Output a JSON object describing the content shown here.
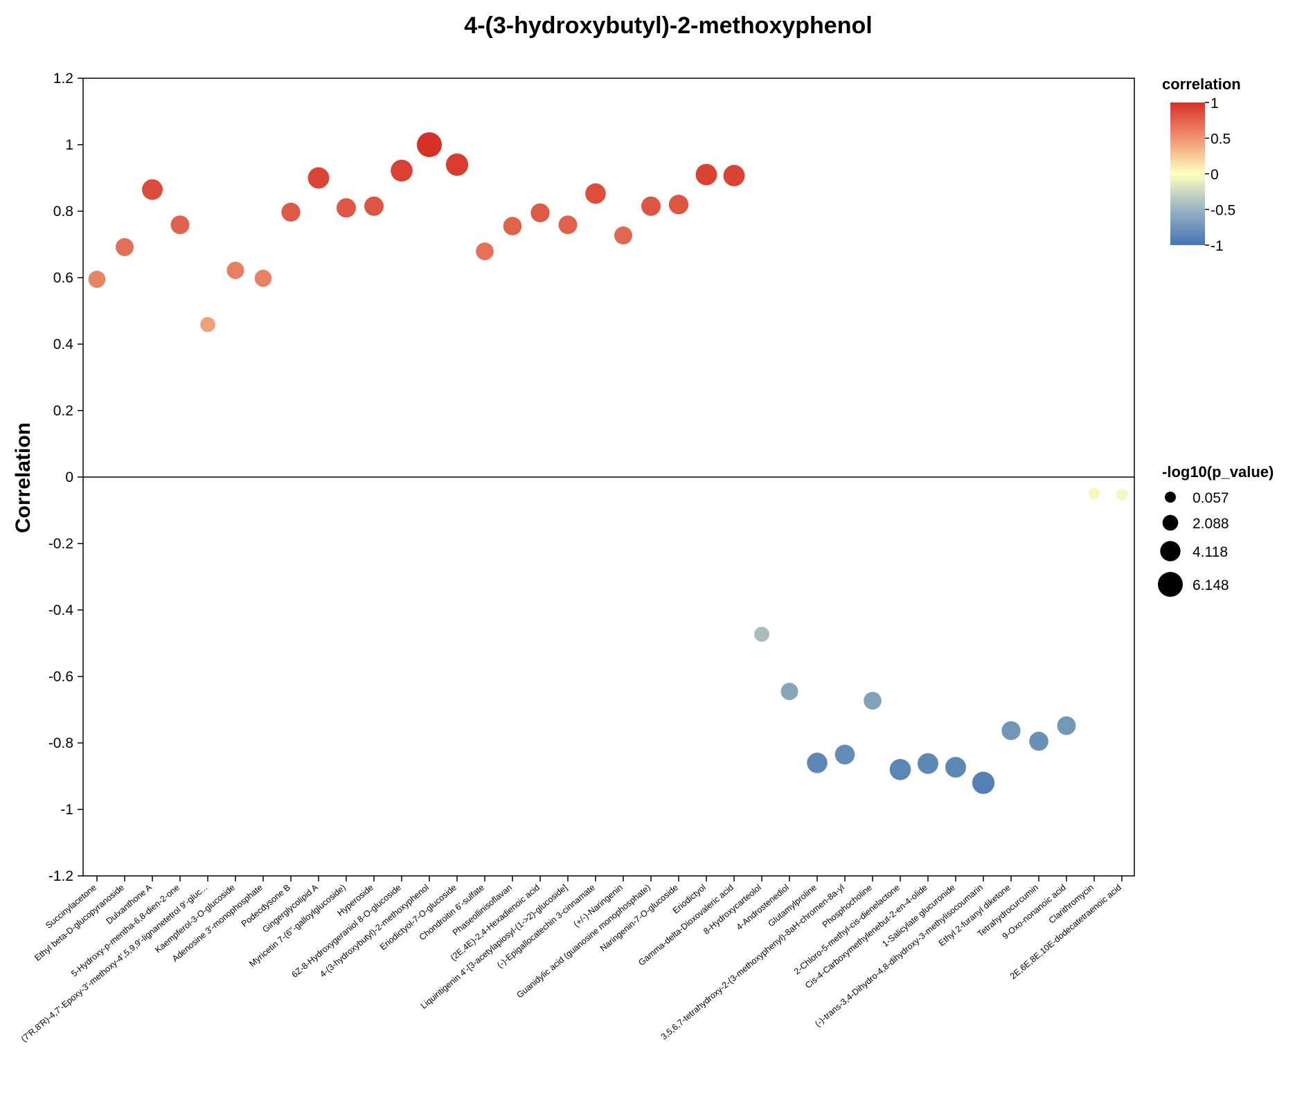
{
  "chart_data": {
    "type": "scatter",
    "title": "4-(3-hydroxybutyl)-2-methoxyphenol",
    "xlabel": "",
    "ylabel": "Correlation",
    "ylim": [
      -1.2,
      1.2
    ],
    "yticks": [
      1.2,
      1,
      0.8,
      0.6,
      0.4,
      0.2,
      0,
      -0.2,
      -0.4,
      -0.6,
      -0.8,
      -1,
      -1.2
    ],
    "ytick_labels": [
      "1.2",
      "1",
      "0.8",
      "0.6",
      "0.4",
      "0.2",
      "0",
      "-0.2",
      "-0.4",
      "-0.6",
      "-0.8",
      "-1",
      "-1.2"
    ],
    "categories": [
      "Succinylacetone",
      "Ethyl beta-D-glucopyranoside",
      "Dulxanthone A",
      "5-Hydroxy-p-mentha-6,8-dien-2-one",
      "(7'R,8'R)-4,7'-Epoxy-3'-methoxy-4',5,9,9'-lignanetetrol 9'-gluc...",
      "Kaempferol-3-O-glucoside",
      "Adenosine 3'-monophosphate",
      "Podecdysone B",
      "Gingerglycolipid A",
      "Myricetin 7-(6''-galloylglucoside)",
      "Hyperoside",
      "6Z-8-Hydroxygeraniol 8-O-glucoside",
      "4-(3-hydroxybutyl)-2-methoxyphenol",
      "Eriodictyol-7-O-glucoside",
      "Chondroitin 6'-sulfate",
      "Phaseollinisoflavan",
      "(2E,4E)-2,4-Hexadienoic acid",
      "Liquiritigenin 4'-[3-acetylapiosyl-(1->2)-glucoside]",
      "(-)-Epigallocatechin 3-cinnamate",
      "(+/-)-Naringenin",
      "Guanidylic acid (guanosine monophosphate)",
      "Naringenin-7-O-glucoside",
      "Eriodictyol",
      "Gamma-delta-Dioxovaleric acid",
      "8-Hydroxycarteolol",
      "4-Androstenediol",
      "Glutamylproline",
      "3,5,6,7-tetrahydroxy-2-(3-methoxyphenyl)-8aH-chromen-8a-yl",
      "Phosphocholine",
      "2-Chloro-5-methyl-cis-dienelactone",
      "Cis-4-Carboxymethylenebut-2-en-4-olide",
      "1-Salicylate glucuronide",
      "(-)-trans-3,4-Dihydro-4,8-dihydroxy-3-methylisocoumarin",
      "Ethyl 2-furanyl diketone",
      "Tetrahydrocurcumin",
      "9-Oxo-nonanoic acid",
      "Clarithromycin",
      "2E,6E,8E,10E-dodecatetraenoic acid"
    ],
    "correlation": [
      0.595,
      0.692,
      0.865,
      0.759,
      0.459,
      0.622,
      0.598,
      0.797,
      0.9,
      0.81,
      0.815,
      0.922,
      1.0,
      0.94,
      0.679,
      0.755,
      0.795,
      0.759,
      0.853,
      0.727,
      0.815,
      0.82,
      0.91,
      0.907,
      -0.473,
      -0.645,
      -0.86,
      -0.835,
      -0.673,
      -0.88,
      -0.862,
      -0.873,
      -0.92,
      -0.763,
      -0.795,
      -0.748,
      -0.05,
      -0.053
    ],
    "neg_log10_p": [
      2.7,
      3.1,
      4.3,
      3.4,
      1.8,
      2.8,
      2.7,
      3.5,
      4.6,
      3.7,
      3.7,
      4.8,
      6.148,
      5.0,
      3.0,
      3.3,
      3.5,
      3.4,
      4.2,
      3.1,
      3.7,
      3.8,
      4.6,
      4.6,
      1.8,
      2.8,
      4.2,
      3.9,
      3.0,
      4.5,
      4.3,
      4.3,
      5.0,
      3.5,
      3.6,
      3.4,
      0.2,
      0.2
    ],
    "color_legend": {
      "title": "correlation",
      "ticks": [
        1,
        0.5,
        0,
        -0.5,
        -1
      ],
      "tick_labels": [
        "1",
        "0.5",
        "0",
        "-0.5",
        "-1"
      ],
      "color_high": "#d73027",
      "color_mid": "#ffffbf",
      "color_low": "#4575b4"
    },
    "size_legend": {
      "title": "-log10(p_value)",
      "values": [
        0.057,
        2.088,
        4.118,
        6.148
      ],
      "labels": [
        "0.057",
        "2.088",
        "4.118",
        "6.148"
      ]
    }
  }
}
